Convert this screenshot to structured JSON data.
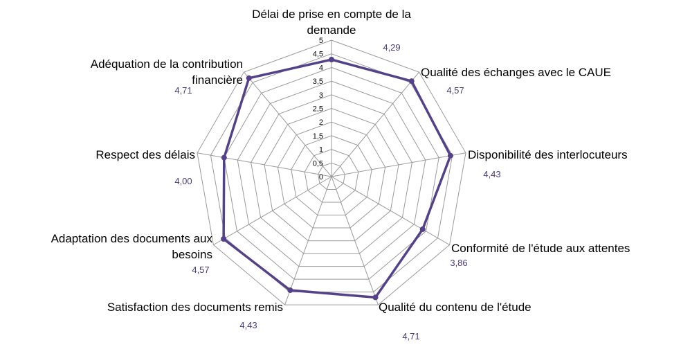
{
  "colors": {
    "series": "#55408a",
    "grid": "#9a9a9a",
    "value_text": "#4b3a7a"
  },
  "chart_data": {
    "type": "radar",
    "rmax": 5,
    "ticks": [
      "0",
      "0,5",
      "1",
      "1,5",
      "2",
      "2,5",
      "3",
      "3,5",
      "4",
      "4,5",
      "5"
    ],
    "categories": [
      [
        "Délai de prise en compte de la",
        "demande"
      ],
      [
        "Qualité des échanges avec le CAUE"
      ],
      [
        "Disponibilité des interlocuteurs"
      ],
      [
        "Conformité de l'étude aux attentes"
      ],
      [
        "Qualité du contenu de l'étude"
      ],
      [
        "Satisfaction des documents remis"
      ],
      [
        "Adaptation des documents aux",
        "besoins"
      ],
      [
        "Respect des délais"
      ],
      [
        "Adéquation de la contribution",
        "financière"
      ]
    ],
    "values": [
      4.29,
      4.57,
      4.43,
      3.86,
      4.71,
      4.43,
      4.57,
      4.0,
      4.71
    ],
    "value_labels": [
      "4,29",
      "4,57",
      "4,43",
      "3,86",
      "4,71",
      "4,43",
      "4,57",
      "4,00",
      "4,71"
    ]
  }
}
